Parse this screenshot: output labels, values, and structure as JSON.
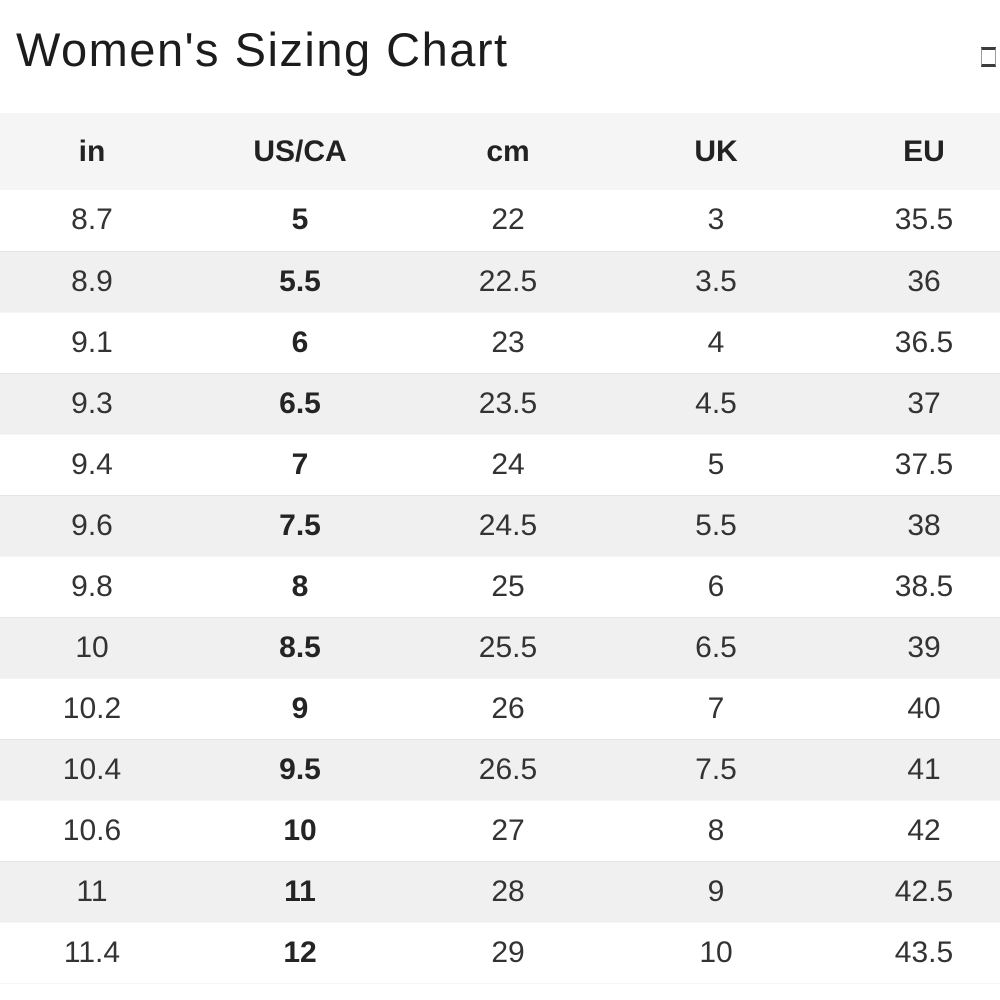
{
  "title": "Women's Sizing Chart",
  "icons": {
    "title_action": "placeholder-box-icon"
  },
  "colors": {
    "header_bg": "#f5f5f5",
    "stripe_bg": "#f0f0f0",
    "title_text": "#1c1c1c",
    "cell_text": "#333333"
  },
  "table": {
    "columns": [
      "in",
      "US/CA",
      "cm",
      "UK",
      "EU"
    ],
    "bold_column": "US/CA",
    "rows": [
      [
        "8.7",
        "5",
        "22",
        "3",
        "35.5"
      ],
      [
        "8.9",
        "5.5",
        "22.5",
        "3.5",
        "36"
      ],
      [
        "9.1",
        "6",
        "23",
        "4",
        "36.5"
      ],
      [
        "9.3",
        "6.5",
        "23.5",
        "4.5",
        "37"
      ],
      [
        "9.4",
        "7",
        "24",
        "5",
        "37.5"
      ],
      [
        "9.6",
        "7.5",
        "24.5",
        "5.5",
        "38"
      ],
      [
        "9.8",
        "8",
        "25",
        "6",
        "38.5"
      ],
      [
        "10",
        "8.5",
        "25.5",
        "6.5",
        "39"
      ],
      [
        "10.2",
        "9",
        "26",
        "7",
        "40"
      ],
      [
        "10.4",
        "9.5",
        "26.5",
        "7.5",
        "41"
      ],
      [
        "10.6",
        "10",
        "27",
        "8",
        "42"
      ],
      [
        "11",
        "11",
        "28",
        "9",
        "42.5"
      ],
      [
        "11.4",
        "12",
        "29",
        "10",
        "43.5"
      ]
    ]
  }
}
